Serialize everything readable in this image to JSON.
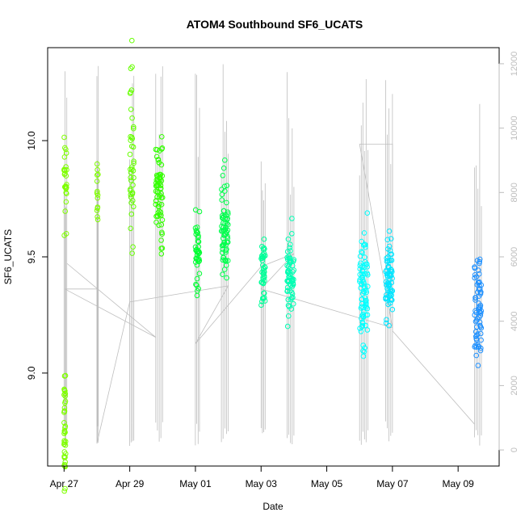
{
  "chart_data": {
    "type": "scatter",
    "title": "ATOM4 Southbound SF6_UCATS",
    "xlabel": "Date",
    "ylabel": "SF6_UCATS",
    "x_ticks": [
      {
        "date": "2016-04-27",
        "label": "Apr 27"
      },
      {
        "date": "2016-04-29",
        "label": "Apr 29"
      },
      {
        "date": "2016-05-01",
        "label": "May 01"
      },
      {
        "date": "2016-05-03",
        "label": "May 03"
      },
      {
        "date": "2016-05-05",
        "label": "May 05"
      },
      {
        "date": "2016-05-07",
        "label": "May 07"
      },
      {
        "date": "2016-05-09",
        "label": "May 09"
      }
    ],
    "xlim": [
      "2016-04-26T12:00",
      "2016-05-10T06:00"
    ],
    "y_ticks": [
      "9.0",
      "9.5",
      "10.0"
    ],
    "ylim": [
      8.6,
      10.4
    ],
    "y2_ticks": [
      "0",
      "2000",
      "4000",
      "6000",
      "8000",
      "10000",
      "12000"
    ],
    "y2lim": [
      -500,
      12500
    ],
    "grid": false,
    "legend": "none",
    "series": [
      {
        "start": "2016-04-27T00:00",
        "end": "2016-04-27T02:00",
        "mean": 9.82,
        "spread": 0.1,
        "low_start": "2016-04-27T00:00",
        "low_end": "2016-04-27T03:00",
        "low_mean": 8.75,
        "low_spread": 0.12,
        "color": "#7fff00"
      },
      {
        "start": "2016-04-28T00:00",
        "end": "2016-04-28T01:00",
        "mean": 9.78,
        "spread": 0.06,
        "color": "#7fff00"
      },
      {
        "start": "2016-04-29T00:00",
        "end": "2016-04-29T03:00",
        "mean": 9.9,
        "spread": 0.2,
        "color": "#66ff00"
      },
      {
        "start": "2016-04-29T19:00",
        "end": "2016-04-30T00:00",
        "mean": 9.78,
        "spread": 0.13,
        "color": "#33ff00"
      },
      {
        "start": "2016-05-01T00:00",
        "end": "2016-05-01T03:00",
        "mean": 9.5,
        "spread": 0.07,
        "color": "#00ff33"
      },
      {
        "start": "2016-05-01T19:00",
        "end": "2016-05-02T00:00",
        "mean": 9.62,
        "spread": 0.11,
        "color": "#00ff4d"
      },
      {
        "start": "2016-05-03T00:00",
        "end": "2016-05-03T03:00",
        "mean": 9.43,
        "spread": 0.09,
        "color": "#00ff99"
      },
      {
        "start": "2016-05-03T19:00",
        "end": "2016-05-04T00:00",
        "mean": 9.42,
        "spread": 0.09,
        "color": "#00ffb3"
      },
      {
        "start": "2016-05-06T00:00",
        "end": "2016-05-06T06:00",
        "mean": 9.35,
        "spread": 0.13,
        "color": "#00ffff"
      },
      {
        "start": "2016-05-06T19:00",
        "end": "2016-05-07T00:00",
        "mean": 9.38,
        "spread": 0.1,
        "color": "#00e5ff"
      },
      {
        "start": "2016-05-09T12:00",
        "end": "2016-05-09T17:00",
        "mean": 9.28,
        "spread": 0.12,
        "color": "#1e90ff"
      }
    ],
    "altitude_line_color": "#bebebe"
  }
}
